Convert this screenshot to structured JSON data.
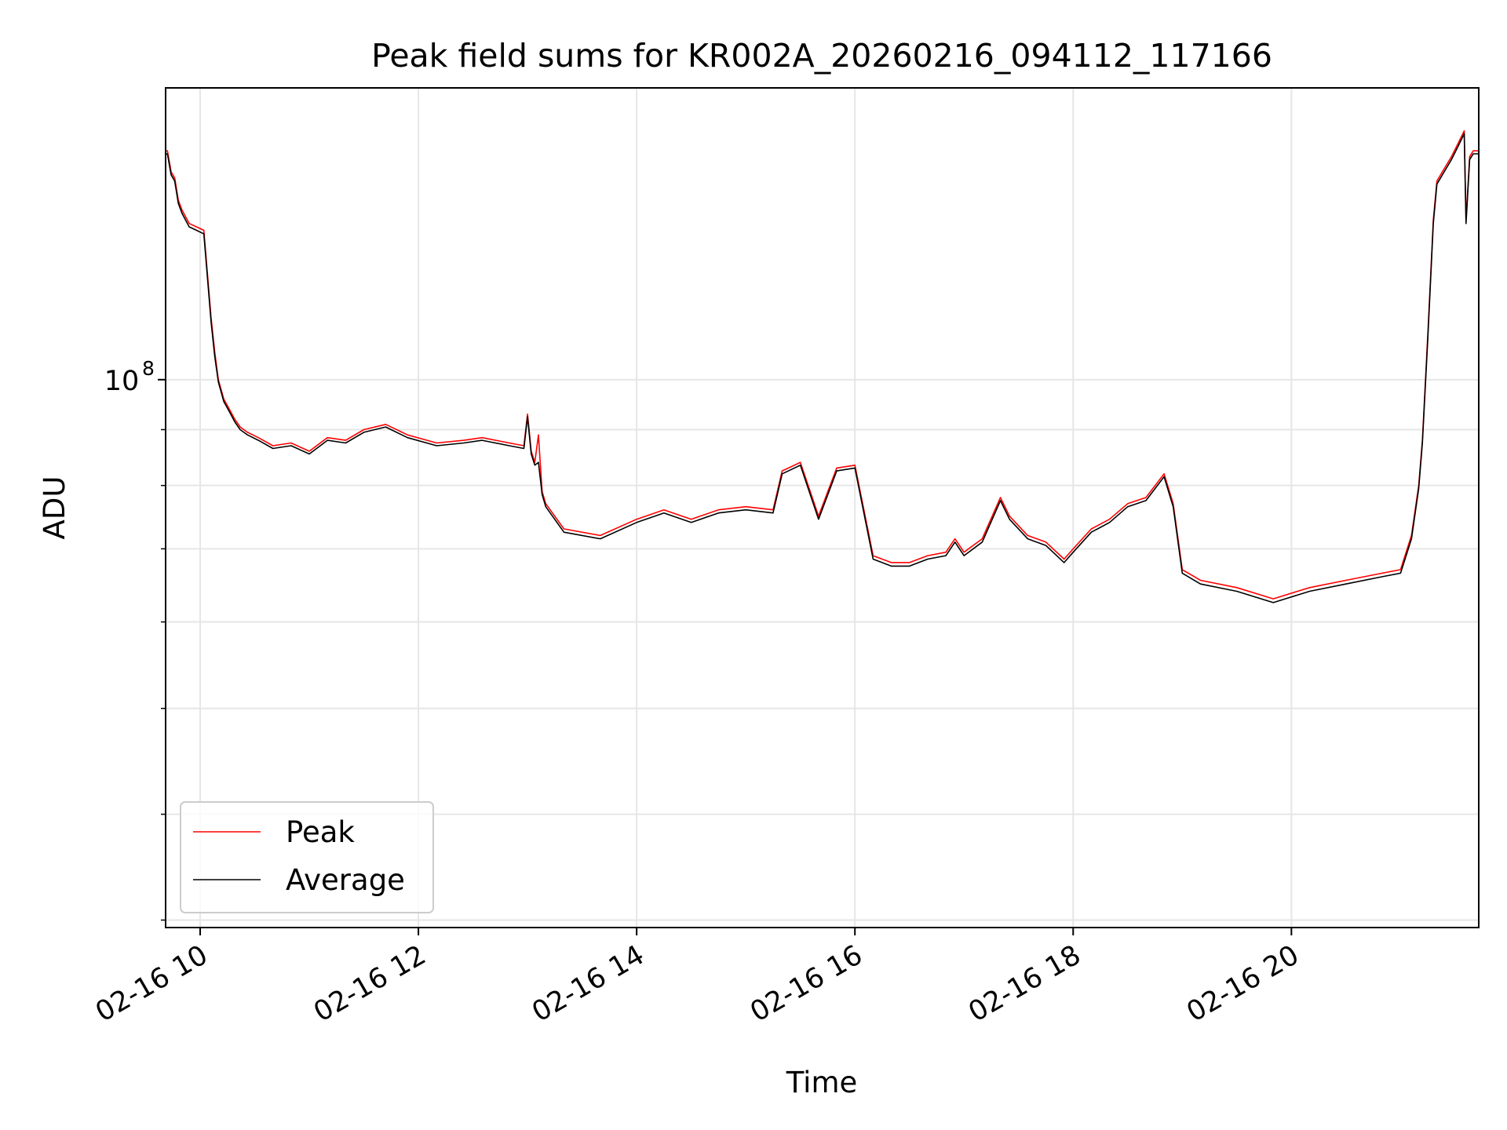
{
  "chart_data": {
    "type": "line",
    "title": "Peak field sums for KR002A_20260216_094112_117166",
    "xlabel": "Time",
    "ylabel": "ADU",
    "yscale": "log",
    "xlim": [
      "2026-02-16 09:41",
      "2026-02-16 21:43"
    ],
    "ylim": [
      31500000.0,
      185000000.0
    ],
    "grid": true,
    "legend_position": "lower left",
    "x_ticks": [
      {
        "value": "2026-02-16 10:00",
        "label": "02-16 10"
      },
      {
        "value": "2026-02-16 12:00",
        "label": "02-16 12"
      },
      {
        "value": "2026-02-16 14:00",
        "label": "02-16 14"
      },
      {
        "value": "2026-02-16 16:00",
        "label": "02-16 16"
      },
      {
        "value": "2026-02-16 18:00",
        "label": "02-16 18"
      },
      {
        "value": "2026-02-16 20:00",
        "label": "02-16 20"
      }
    ],
    "y_major_ticks": [
      {
        "value": 100000000.0,
        "label_base": "10",
        "label_exp": "8"
      }
    ],
    "y_minor_ticks": [
      32000000.0,
      40000000.0,
      50000000.0,
      60000000.0,
      70000000.0,
      80000000.0,
      90000000.0
    ],
    "x": [
      "2026-02-16 09:41",
      "2026-02-16 09:42",
      "2026-02-16 09:44",
      "2026-02-16 09:46",
      "2026-02-16 09:48",
      "2026-02-16 09:50",
      "2026-02-16 09:54",
      "2026-02-16 09:58",
      "2026-02-16 10:02",
      "2026-02-16 10:04",
      "2026-02-16 10:06",
      "2026-02-16 10:08",
      "2026-02-16 10:10",
      "2026-02-16 10:13",
      "2026-02-16 10:16",
      "2026-02-16 10:19",
      "2026-02-16 10:22",
      "2026-02-16 10:26",
      "2026-02-16 10:32",
      "2026-02-16 10:40",
      "2026-02-16 10:50",
      "2026-02-16 11:00",
      "2026-02-16 11:10",
      "2026-02-16 11:20",
      "2026-02-16 11:30",
      "2026-02-16 11:42",
      "2026-02-16 11:54",
      "2026-02-16 12:10",
      "2026-02-16 12:25",
      "2026-02-16 12:35",
      "2026-02-16 12:50",
      "2026-02-16 12:58",
      "2026-02-16 13:00",
      "2026-02-16 13:02",
      "2026-02-16 13:04",
      "2026-02-16 13:06",
      "2026-02-16 13:08",
      "2026-02-16 13:10",
      "2026-02-16 13:20",
      "2026-02-16 13:40",
      "2026-02-16 14:00",
      "2026-02-16 14:15",
      "2026-02-16 14:30",
      "2026-02-16 14:45",
      "2026-02-16 15:00",
      "2026-02-16 15:15",
      "2026-02-16 15:20",
      "2026-02-16 15:30",
      "2026-02-16 15:40",
      "2026-02-16 15:50",
      "2026-02-16 16:00",
      "2026-02-16 16:10",
      "2026-02-16 16:20",
      "2026-02-16 16:30",
      "2026-02-16 16:40",
      "2026-02-16 16:50",
      "2026-02-16 16:55",
      "2026-02-16 17:00",
      "2026-02-16 17:10",
      "2026-02-16 17:20",
      "2026-02-16 17:25",
      "2026-02-16 17:35",
      "2026-02-16 17:45",
      "2026-02-16 17:55",
      "2026-02-16 18:00",
      "2026-02-16 18:10",
      "2026-02-16 18:20",
      "2026-02-16 18:30",
      "2026-02-16 18:40",
      "2026-02-16 18:50",
      "2026-02-16 18:55",
      "2026-02-16 19:00",
      "2026-02-16 19:10",
      "2026-02-16 19:30",
      "2026-02-16 19:50",
      "2026-02-16 20:10",
      "2026-02-16 20:30",
      "2026-02-16 20:50",
      "2026-02-16 21:00",
      "2026-02-16 21:06",
      "2026-02-16 21:10",
      "2026-02-16 21:12",
      "2026-02-16 21:15",
      "2026-02-16 21:18",
      "2026-02-16 21:20",
      "2026-02-16 21:24",
      "2026-02-16 21:28",
      "2026-02-16 21:32",
      "2026-02-16 21:35",
      "2026-02-16 21:36",
      "2026-02-16 21:38",
      "2026-02-16 21:40",
      "2026-02-16 21:43"
    ],
    "series": [
      {
        "name": "Peak",
        "color": "#ff0000",
        "values": [
          162000000.0,
          162000000.0,
          155000000.0,
          153000000.0,
          146000000.0,
          143000000.0,
          139000000.0,
          138000000.0,
          137000000.0,
          125000000.0,
          114000000.0,
          106000000.0,
          100000000.0,
          96000000.0,
          94000000.0,
          92000000.0,
          90500000.0,
          89500000.0,
          88500000.0,
          87000000.0,
          87500000.0,
          86000000.0,
          88500000.0,
          88000000.0,
          90000000.0,
          91000000.0,
          89000000.0,
          87500000.0,
          88000000.0,
          88500000.0,
          87500000.0,
          87000000.0,
          93000000.0,
          86000000.0,
          84000000.0,
          89000000.0,
          79000000.0,
          77000000.0,
          73000000.0,
          72000000.0,
          74500000.0,
          76000000.0,
          74500000.0,
          76000000.0,
          76500000.0,
          76000000.0,
          82500000.0,
          84000000.0,
          75000000.0,
          83000000.0,
          83500000.0,
          69000000.0,
          68000000.0,
          68000000.0,
          69000000.0,
          69500000.0,
          71500000.0,
          69500000.0,
          71500000.0,
          78000000.0,
          75000000.0,
          72000000.0,
          71000000.0,
          68500000.0,
          70000000.0,
          73000000.0,
          74500000.0,
          77000000.0,
          78000000.0,
          82000000.0,
          77000000.0,
          67000000.0,
          65500000.0,
          64500000.0,
          63000000.0,
          64500000.0,
          65500000.0,
          66500000.0,
          67000000.0,
          72000000.0,
          80000000.0,
          88000000.0,
          110000000.0,
          140000000.0,
          152000000.0,
          156000000.0,
          160000000.0,
          165000000.0,
          169000000.0,
          140000000.0,
          160000000.0,
          162000000.0,
          162000000.0
        ]
      },
      {
        "name": "Average",
        "color": "#000000",
        "values": [
          161000000.0,
          161000000.0,
          154000000.0,
          152000000.0,
          145000000.0,
          142000000.0,
          138000000.0,
          137000000.0,
          136000000.0,
          124000000.0,
          113000000.0,
          105000000.0,
          99500000.0,
          95500000.0,
          93500000.0,
          91500000.0,
          90000000.0,
          89000000.0,
          88000000.0,
          86500000.0,
          87000000.0,
          85500000.0,
          88000000.0,
          87500000.0,
          89500000.0,
          90500000.0,
          88500000.0,
          87000000.0,
          87500000.0,
          88000000.0,
          87000000.0,
          86500000.0,
          92500000.0,
          85500000.0,
          83500000.0,
          84000000.0,
          78500000.0,
          76500000.0,
          72500000.0,
          71500000.0,
          74000000.0,
          75500000.0,
          74000000.0,
          75500000.0,
          76000000.0,
          75500000.0,
          82000000.0,
          83500000.0,
          74500000.0,
          82500000.0,
          83000000.0,
          68500000.0,
          67500000.0,
          67500000.0,
          68500000.0,
          69000000.0,
          71000000.0,
          69000000.0,
          71000000.0,
          77500000.0,
          74500000.0,
          71500000.0,
          70500000.0,
          68000000.0,
          69500000.0,
          72500000.0,
          74000000.0,
          76500000.0,
          77500000.0,
          81500000.0,
          76500000.0,
          66500000.0,
          65000000.0,
          64000000.0,
          62500000.0,
          64000000.0,
          65000000.0,
          66000000.0,
          66500000.0,
          71500000.0,
          79500000.0,
          87500000.0,
          109000000.0,
          139000000.0,
          151000000.0,
          155000000.0,
          159000000.0,
          164000000.0,
          168000000.0,
          139000000.0,
          159000000.0,
          161000000.0,
          161000000.0
        ]
      }
    ],
    "legend": [
      {
        "label": "Peak",
        "color": "#ff0000"
      },
      {
        "label": "Average",
        "color": "#000000"
      }
    ]
  }
}
